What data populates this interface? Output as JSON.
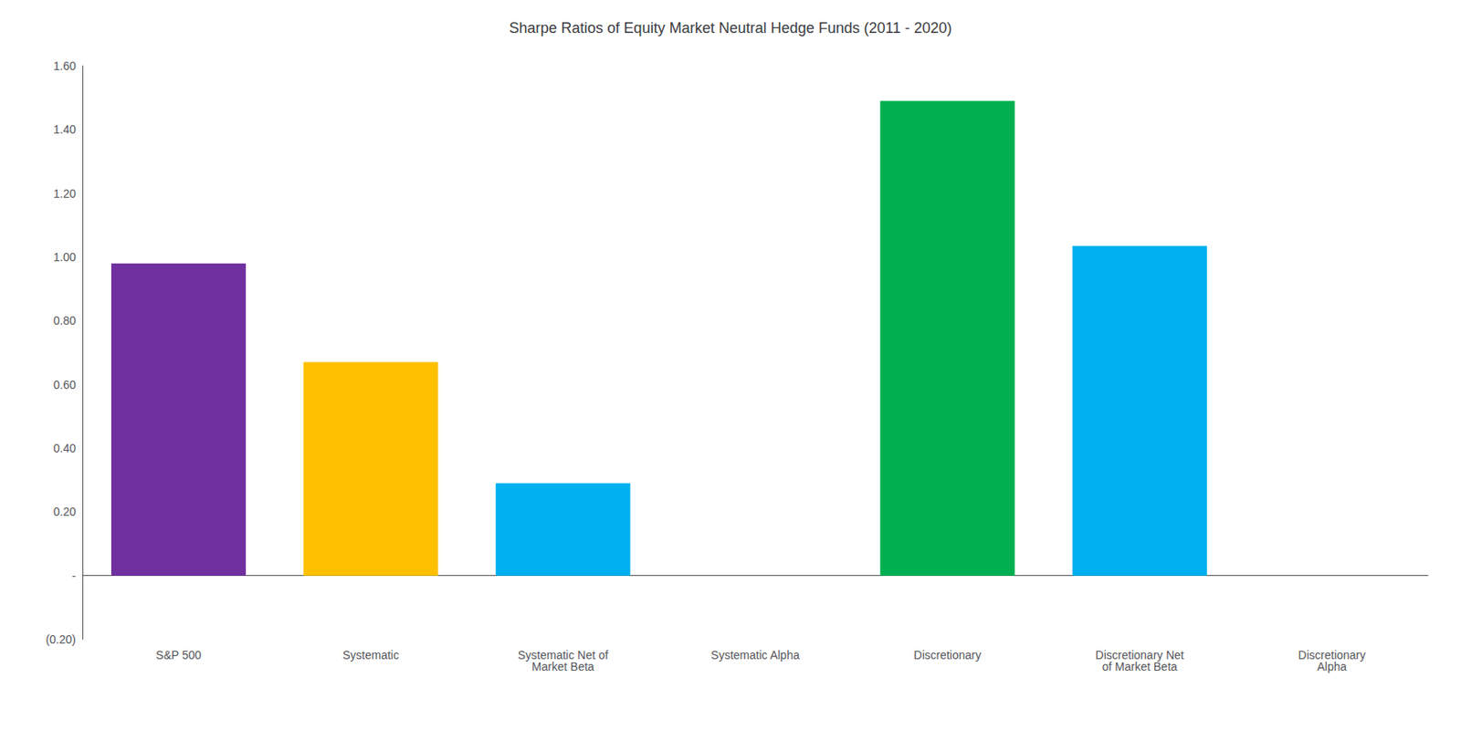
{
  "chart_data": {
    "type": "bar",
    "title": "Sharpe Ratios of Equity Market Neutral Hedge Funds (2011 - 2020)",
    "categories": [
      "S&P 500",
      "Systematic",
      "Systematic Net of\nMarket Beta",
      "Systematic Alpha",
      "Discretionary",
      "Discretionary Net\nof Market Beta",
      "Discretionary\nAlpha"
    ],
    "values": [
      0.98,
      0.67,
      0.29,
      0.0,
      1.49,
      1.035,
      0.0
    ],
    "colors": [
      "#7030A0",
      "#FFC000",
      "#00B0F0",
      "#00B0F0",
      "#00B050",
      "#00B0F0",
      "#00B0F0"
    ],
    "ylim": [
      -0.2,
      1.6
    ],
    "yticks": [
      {
        "value": -0.2,
        "label": "(0.20)"
      },
      {
        "value": 0.0,
        "label": "-"
      },
      {
        "value": 0.2,
        "label": "0.20"
      },
      {
        "value": 0.4,
        "label": "0.40"
      },
      {
        "value": 0.6,
        "label": "0.60"
      },
      {
        "value": 0.8,
        "label": "0.80"
      },
      {
        "value": 1.0,
        "label": "1.00"
      },
      {
        "value": 1.2,
        "label": "1.20"
      },
      {
        "value": 1.4,
        "label": "1.40"
      },
      {
        "value": 1.6,
        "label": "1.60"
      }
    ],
    "grid": false
  }
}
